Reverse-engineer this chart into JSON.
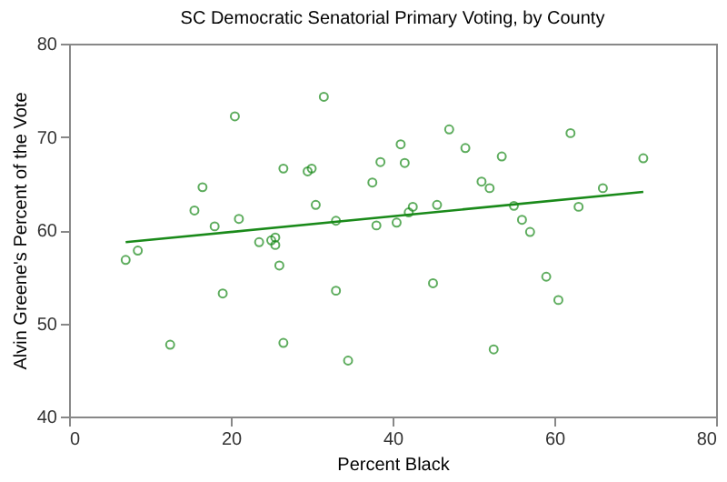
{
  "chart_data": {
    "type": "scatter",
    "title": "SC Democratic Senatorial Primary Voting, by County",
    "xlabel": "Percent Black",
    "ylabel": "Alvin Greene's Percent of the Vote",
    "xlim": [
      0,
      80
    ],
    "xticks": [
      0,
      20,
      40,
      60,
      80
    ],
    "ylim": [
      40,
      80
    ],
    "yticks": [
      40,
      50,
      60,
      70,
      80
    ],
    "grid": false,
    "legend": false,
    "series": [
      {
        "type": "scatter",
        "marker": "circle",
        "color": "#1a8a1a",
        "x": [
          7,
          8.5,
          12.5,
          15.5,
          16.5,
          18,
          19,
          20.5,
          21,
          23.5,
          25,
          25.5,
          25.5,
          26,
          26.5,
          26.5,
          29.5,
          30,
          30.5,
          31.5,
          33,
          33,
          34.5,
          37.5,
          38,
          38.5,
          40.5,
          41,
          41.5,
          42,
          42.5,
          45.5,
          45,
          47,
          49,
          51,
          52,
          52.5,
          53.5,
          55,
          56,
          57,
          59,
          60.5,
          62,
          63,
          66,
          71
        ],
        "values": [
          56.8,
          57.8,
          47.7,
          62.1,
          64.6,
          60.4,
          53.2,
          72.2,
          61.2,
          58.7,
          58.9,
          59.2,
          58.4,
          56.2,
          66.6,
          47.9,
          66.3,
          66.6,
          62.7,
          74.3,
          61,
          53.5,
          46,
          65.1,
          60.5,
          67.3,
          60.8,
          69.2,
          67.2,
          61.9,
          62.5,
          62.7,
          54.3,
          70.8,
          68.8,
          65.2,
          64.5,
          47.2,
          67.9,
          62.6,
          61.1,
          59.8,
          55,
          52.5,
          70.4,
          62.5,
          64.5,
          67.7
        ]
      },
      {
        "type": "line",
        "color": "#1a8a1a",
        "x": [
          7,
          71
        ],
        "values": [
          58.7,
          64.1
        ],
        "line_style": "solid",
        "marker": "none"
      }
    ]
  }
}
